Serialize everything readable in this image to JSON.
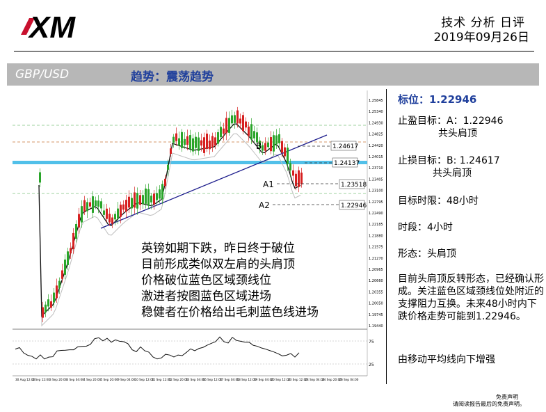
{
  "header": {
    "logo_text": "XM",
    "title": "技术 分析 日评",
    "date": "2019年09月26日"
  },
  "pair_bar": {
    "pair": "GBP/USD",
    "trend": "趋势：震荡趋势"
  },
  "chart": {
    "labels": {
      "B": "B",
      "A1": "A1",
      "A2": "A2",
      "box_b": "1.24617",
      "box_neck": "1.24137",
      "box_a1": "1.23518",
      "box_a2": "1.22946"
    },
    "price_ticks": [
      "1.25845",
      "1.25340",
      "1.24930",
      "1.24825",
      "1.24420",
      "1.24015",
      "1.23710",
      "1.23405",
      "1.23100",
      "1.22795",
      "1.22490",
      "1.22185",
      "1.21880",
      "1.21575",
      "1.21270",
      "1.20965",
      "1.20660",
      "1.20355",
      "1.20050",
      "1.19745",
      "1.19440"
    ],
    "osc_ticks": [
      "75",
      "25"
    ],
    "date_ticks": [
      "30 Aug 12:00",
      "2 Sep 12:00",
      "3 Sep 20:00",
      "4 Sep 04:00",
      "4 Sep 20:00",
      "5 Sep 20:00",
      "9 Sep 04:00",
      "10 Sep 12:00",
      "11 Sep 12:00",
      "12 Sep 20:00",
      "13 Sep 04:00",
      "16 Sep 12:00",
      "17 Sep 04:00",
      "18 Sep 12:00",
      "19 Sep 04:00",
      "20 Sep 12:00",
      "23 Sep 12:00",
      "24 Sep 04:00",
      "24 Sep 20:00",
      "26 Sep 04:00"
    ],
    "annotation": [
      "英镑如期下跌，昨日终于破位",
      "目前形成类似双左肩的头肩顶",
      "价格破位蓝色区域颈线位",
      "激进者按图蓝色区域进场",
      "稳健者在价格给出毛刺蓝色线进场"
    ]
  },
  "side": {
    "target": "标位：1.22946",
    "take_profit": "止盈目标：A：1.22946",
    "take_profit_sub": "共头肩顶",
    "stop_loss": "止损目标：B: 1.24617",
    "stop_loss_sub": "共头肩顶",
    "time_limit": "目标时限：48小时",
    "period": "时段：4小时",
    "pattern": "形态：头肩顶",
    "analysis": "目前头肩顶反转形态，已经确认形成。关注蓝色区域颈线位处附近的支撑阻力互换。未来48小时内下跌价格走势可能到1.22946。",
    "ma_note": "由移动平均线向下增强"
  },
  "disclaimer": {
    "line1": "免责声明",
    "line2": "请阅读报告最后的免责声明。"
  },
  "colors": {
    "brand_red": "#c8102e",
    "bar_grey": "#b7b7b7",
    "accent_blue": "#1f3f9c",
    "bull": "#2aa52a",
    "bear": "#d62020",
    "neckline": "#33b5e5"
  }
}
